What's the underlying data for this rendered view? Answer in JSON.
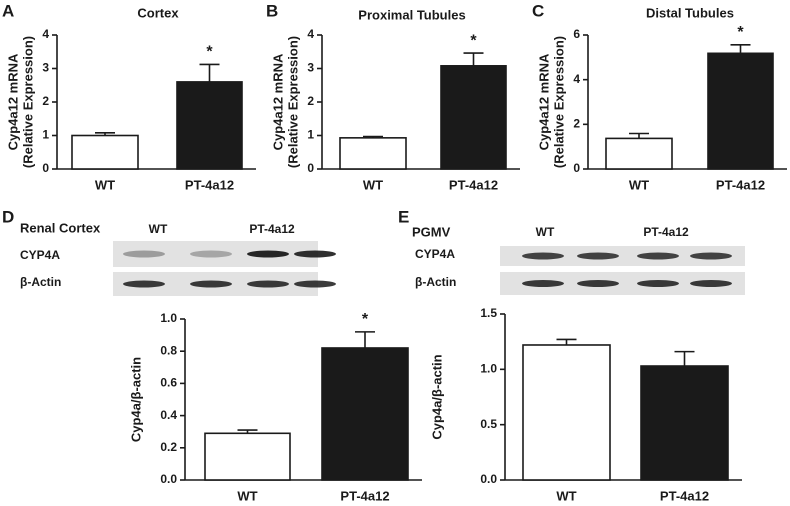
{
  "chart_data": [
    {
      "type": "bar",
      "panel": "A",
      "title": "Cortex",
      "ylabel": [
        "Cyp4a12 mRNA",
        "(Relative Expression)"
      ],
      "categories": [
        "WT",
        "PT-4a12"
      ],
      "values": [
        1.0,
        2.6
      ],
      "errors": [
        0.08,
        0.52
      ],
      "colors": [
        "#ffffff",
        "#1a1a1a"
      ],
      "ylim": [
        0,
        4
      ],
      "yticks": [
        0,
        1,
        2,
        3,
        4
      ],
      "annotation": "*"
    },
    {
      "type": "bar",
      "panel": "B",
      "title": "Proximal Tubules",
      "ylabel": [
        "Cyp4a12 mRNA",
        "(Relative Expression)"
      ],
      "categories": [
        "WT",
        "PT-4a12"
      ],
      "values": [
        0.93,
        3.08
      ],
      "errors": [
        0.04,
        0.38
      ],
      "colors": [
        "#ffffff",
        "#1a1a1a"
      ],
      "ylim": [
        0,
        4
      ],
      "yticks": [
        0,
        1,
        2,
        3,
        4
      ],
      "annotation": "*"
    },
    {
      "type": "bar",
      "panel": "C",
      "title": "Distal Tubules",
      "ylabel": [
        "Cyp4a12 mRNA",
        "(Relative Expression)"
      ],
      "categories": [
        "WT",
        "PT-4a12"
      ],
      "values": [
        1.37,
        5.18
      ],
      "errors": [
        0.22,
        0.38
      ],
      "colors": [
        "#ffffff",
        "#1a1a1a"
      ],
      "ylim": [
        0,
        6
      ],
      "yticks": [
        0,
        2,
        4,
        6
      ],
      "annotation": "*"
    },
    {
      "type": "bar",
      "panel": "D",
      "title": "Renal Cortex",
      "ylabel": [
        "Cyp4a/β-actin"
      ],
      "blot": {
        "group_labels": [
          "WT",
          "PT-4a12"
        ],
        "row_labels": [
          "CYP4A",
          "β-Actin"
        ]
      },
      "categories": [
        "WT",
        "PT-4a12"
      ],
      "values": [
        0.29,
        0.82
      ],
      "errors": [
        0.02,
        0.1
      ],
      "colors": [
        "#ffffff",
        "#1a1a1a"
      ],
      "ylim": [
        0,
        1.0
      ],
      "yticks": [
        {
          "value": 0,
          "label": "0.0"
        },
        0.2,
        0.4,
        0.6,
        0.8,
        {
          "value": 1,
          "label": "1.0"
        }
      ],
      "annotation": "*"
    },
    {
      "type": "bar",
      "panel": "E",
      "title": "PGMV",
      "ylabel": [
        "Cyp4a/β-actin"
      ],
      "blot": {
        "group_labels": [
          "WT",
          "PT-4a12"
        ],
        "row_labels": [
          "CYP4A",
          "β-Actin"
        ]
      },
      "categories": [
        "WT",
        "PT-4a12"
      ],
      "values": [
        1.22,
        1.03
      ],
      "errors": [
        0.05,
        0.13
      ],
      "colors": [
        "#ffffff",
        "#1a1a1a"
      ],
      "ylim": [
        0,
        1.5
      ],
      "yticks": [
        {
          "value": 0,
          "label": "0.0"
        },
        0.5,
        {
          "value": 1,
          "label": "1.0"
        },
        1.5
      ]
    }
  ]
}
